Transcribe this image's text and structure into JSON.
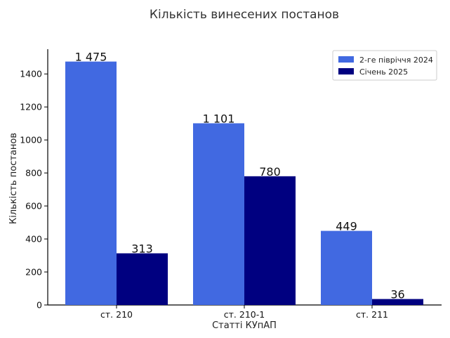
{
  "chart_data": {
    "type": "bar",
    "title": "Кількість винесених постанов",
    "xlabel": "Статті КУпАП",
    "ylabel": "Кількість постанов",
    "categories": [
      "ст. 210",
      "ст. 210-1",
      "ст. 211"
    ],
    "series": [
      {
        "name": "2-ге півріччя 2024",
        "color": "#4169e1",
        "values": [
          1475,
          1101,
          449
        ],
        "labels": [
          "1 475",
          "1 101",
          "449"
        ]
      },
      {
        "name": "Січень 2025",
        "color": "#000080",
        "values": [
          313,
          780,
          36
        ],
        "labels": [
          "313",
          "780",
          "36"
        ]
      }
    ],
    "ylim": [
      0,
      1550
    ],
    "yticks": [
      0,
      200,
      400,
      600,
      800,
      1000,
      1200,
      1400
    ],
    "grid": false,
    "legend": "top-right"
  }
}
